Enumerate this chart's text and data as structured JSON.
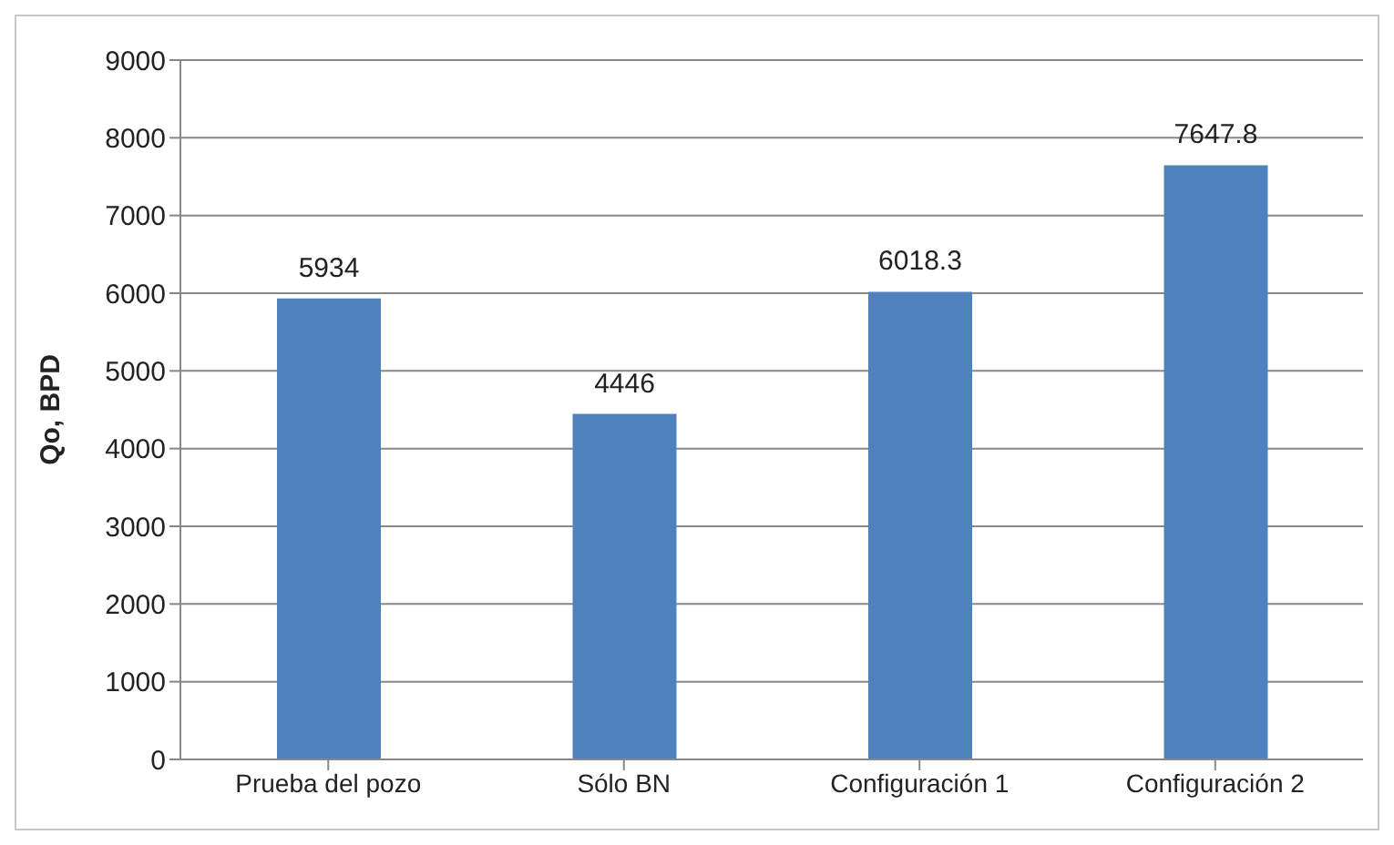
{
  "chart_data": {
    "type": "bar",
    "ylabel": "Qo, BPD",
    "categories": [
      "Prueba del pozo",
      "Sólo BN",
      "Configuración 1",
      "Configuración 2"
    ],
    "values": [
      5934,
      4446,
      6018.3,
      7647.8
    ],
    "color": "#4f81bd",
    "ylim": [
      0,
      9000
    ],
    "yticks": [
      0,
      1000,
      2000,
      3000,
      4000,
      5000,
      6000,
      7000,
      8000,
      9000
    ],
    "grid": "y",
    "data_labels": true
  }
}
